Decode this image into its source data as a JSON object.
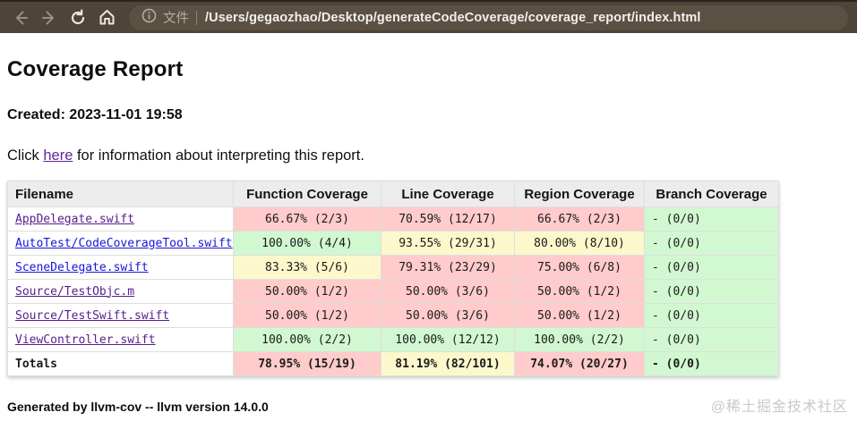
{
  "browser": {
    "file_label": "文件",
    "url": "/Users/gegaozhao/Desktop/generateCodeCoverage/coverage_report/index.html",
    "icons": [
      "back-arrow",
      "forward-arrow",
      "reload",
      "home",
      "info"
    ]
  },
  "page": {
    "title": "Coverage Report",
    "created": "Created: 2023-11-01 19:58",
    "click_prefix": "Click ",
    "link_text": "here",
    "click_suffix": " for information about interpreting this report.",
    "footer": "Generated by llvm-cov -- llvm version 14.0.0",
    "watermark": "@稀土掘金技术社区"
  },
  "colors": {
    "red": "#ffcbcb",
    "yellow": "#fcf8cb",
    "green": "#d2f8d2",
    "toolbar": "#4e4538",
    "address_bar": "#5a5143",
    "link_new": "#1616d8",
    "link_visited": "#571c8e"
  },
  "table": {
    "headers": [
      "Filename",
      "Function Coverage",
      "Line Coverage",
      "Region Coverage",
      "Branch Coverage"
    ],
    "rows": [
      {
        "filename": "AppDelegate.swift",
        "is_link": true,
        "visited": true,
        "function": {
          "text": "66.67% (2/3)",
          "level": "red"
        },
        "line": {
          "text": "70.59% (12/17)",
          "level": "red"
        },
        "region": {
          "text": "66.67% (2/3)",
          "level": "red"
        },
        "branch": {
          "text": "- (0/0)",
          "level": "green"
        }
      },
      {
        "filename": "AutoTest/CodeCoverageTool.swift",
        "is_link": true,
        "visited": false,
        "function": {
          "text": "100.00% (4/4)",
          "level": "green"
        },
        "line": {
          "text": "93.55% (29/31)",
          "level": "yellow"
        },
        "region": {
          "text": "80.00% (8/10)",
          "level": "yellow"
        },
        "branch": {
          "text": "- (0/0)",
          "level": "green"
        }
      },
      {
        "filename": "SceneDelegate.swift",
        "is_link": true,
        "visited": false,
        "function": {
          "text": "83.33% (5/6)",
          "level": "yellow"
        },
        "line": {
          "text": "79.31% (23/29)",
          "level": "red"
        },
        "region": {
          "text": "75.00% (6/8)",
          "level": "red"
        },
        "branch": {
          "text": "- (0/0)",
          "level": "green"
        }
      },
      {
        "filename": "Source/TestObjc.m",
        "is_link": true,
        "visited": true,
        "function": {
          "text": "50.00% (1/2)",
          "level": "red"
        },
        "line": {
          "text": "50.00% (3/6)",
          "level": "red"
        },
        "region": {
          "text": "50.00% (1/2)",
          "level": "red"
        },
        "branch": {
          "text": "- (0/0)",
          "level": "green"
        }
      },
      {
        "filename": "Source/TestSwift.swift",
        "is_link": true,
        "visited": true,
        "function": {
          "text": "50.00% (1/2)",
          "level": "red"
        },
        "line": {
          "text": "50.00% (3/6)",
          "level": "red"
        },
        "region": {
          "text": "50.00% (1/2)",
          "level": "red"
        },
        "branch": {
          "text": "- (0/0)",
          "level": "green"
        }
      },
      {
        "filename": "ViewController.swift",
        "is_link": true,
        "visited": true,
        "function": {
          "text": "100.00% (2/2)",
          "level": "green"
        },
        "line": {
          "text": "100.00% (12/12)",
          "level": "green"
        },
        "region": {
          "text": "100.00% (2/2)",
          "level": "green"
        },
        "branch": {
          "text": "- (0/0)",
          "level": "green"
        }
      },
      {
        "filename": "Totals",
        "is_link": false,
        "is_total": true,
        "function": {
          "text": "78.95% (15/19)",
          "level": "red"
        },
        "line": {
          "text": "81.19% (82/101)",
          "level": "yellow"
        },
        "region": {
          "text": "74.07% (20/27)",
          "level": "red"
        },
        "branch": {
          "text": "- (0/0)",
          "level": "green"
        }
      }
    ]
  }
}
